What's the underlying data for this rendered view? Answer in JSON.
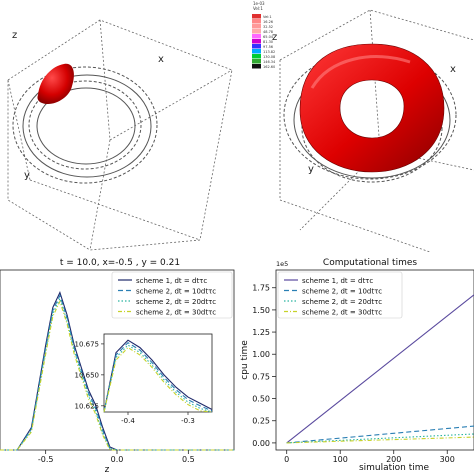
{
  "top_left": {
    "axis_labels": [
      "z",
      "y",
      "x"
    ]
  },
  "top_right": {
    "axis_labels": [
      "z",
      "y",
      "x"
    ],
    "colorbar_swatches": [
      "#e03030",
      "#ff8888",
      "#ff9999",
      "#ffaaaa",
      "#ff66ff",
      "#cc00cc",
      "#3333ff",
      "#00aaff",
      "#00cc33",
      "#33aa33",
      "#111111"
    ],
    "colorbar_text": [
      "1e-03",
      "Vel:1",
      "16.26",
      "32.52",
      "48.78",
      "65.04",
      "81.30",
      "97.56",
      "113.82",
      "130.08",
      "146.34",
      "162.60"
    ]
  },
  "chart_data": [
    {
      "type": "line",
      "title": "t = 10.0, x=-0.5 , y = 0.21",
      "xlabel": "z",
      "ylabel": "",
      "xticks": [
        "-0.5",
        "0.0",
        "0.5"
      ],
      "xlim": [
        -0.82,
        0.82
      ],
      "ylim": [
        10.6,
        10.72
      ],
      "legend_placement": "top-right",
      "series": [
        {
          "name": "scheme 1, dt = dtτc",
          "color": "#1f2a6b",
          "dash": "none",
          "x": [
            -0.82,
            -0.7,
            -0.6,
            -0.5,
            -0.45,
            -0.4,
            -0.35,
            -0.3,
            -0.25,
            -0.2,
            -0.15,
            -0.1,
            -0.05,
            0.0,
            0.2,
            0.5,
            0.82
          ],
          "y": [
            10.6,
            10.6,
            10.615,
            10.67,
            10.695,
            10.705,
            10.69,
            10.67,
            10.655,
            10.64,
            10.63,
            10.615,
            10.602,
            10.6,
            10.6,
            10.6,
            10.6
          ]
        },
        {
          "name": "scheme 2, dt = 10dtτc",
          "color": "#2a7fb4",
          "dash": "5,3",
          "x": [
            -0.82,
            -0.7,
            -0.6,
            -0.5,
            -0.45,
            -0.4,
            -0.35,
            -0.3,
            -0.25,
            -0.2,
            -0.15,
            -0.1,
            -0.05,
            0.0,
            0.2,
            0.5,
            0.82
          ],
          "y": [
            10.6,
            10.6,
            10.614,
            10.668,
            10.693,
            10.703,
            10.688,
            10.668,
            10.653,
            10.638,
            10.628,
            10.613,
            10.601,
            10.6,
            10.6,
            10.6,
            10.6
          ]
        },
        {
          "name": "scheme 2, dt = 20dtτc",
          "color": "#2bb5a0",
          "dash": "1.5,2",
          "x": [
            -0.82,
            -0.7,
            -0.6,
            -0.5,
            -0.45,
            -0.4,
            -0.35,
            -0.3,
            -0.25,
            -0.2,
            -0.15,
            -0.1,
            -0.05,
            0.0,
            0.2,
            0.5,
            0.82
          ],
          "y": [
            10.6,
            10.6,
            10.613,
            10.666,
            10.691,
            10.701,
            10.686,
            10.666,
            10.651,
            10.636,
            10.626,
            10.611,
            10.601,
            10.6,
            10.6,
            10.6,
            10.6
          ]
        },
        {
          "name": "scheme 2, dt = 30dtτc",
          "color": "#c7d22a",
          "dash": "4,2,1,2",
          "x": [
            -0.82,
            -0.7,
            -0.6,
            -0.5,
            -0.45,
            -0.4,
            -0.35,
            -0.3,
            -0.25,
            -0.2,
            -0.15,
            -0.1,
            -0.05,
            0.0,
            0.2,
            0.5,
            0.82
          ],
          "y": [
            10.6,
            10.6,
            10.612,
            10.664,
            10.689,
            10.699,
            10.684,
            10.664,
            10.649,
            10.634,
            10.624,
            10.61,
            10.6,
            10.6,
            10.6,
            10.6,
            10.6
          ]
        }
      ],
      "inset": {
        "xlim": [
          -0.44,
          -0.26
        ],
        "ylim": [
          10.62,
          10.683
        ],
        "xticks": [
          "-0.4",
          "-0.3"
        ],
        "xtick_values": [
          -0.4,
          -0.3
        ],
        "yticks": [
          "10.675",
          "10.650",
          "10.625"
        ],
        "ytick_values": [
          10.675,
          10.65,
          10.625
        ],
        "series": [
          {
            "x": [
              -0.44,
              -0.42,
              -0.4,
              -0.38,
              -0.36,
              -0.34,
              -0.32,
              -0.3,
              -0.28,
              -0.26
            ],
            "y": [
              10.62,
              10.668,
              10.678,
              10.672,
              10.662,
              10.65,
              10.64,
              10.632,
              10.627,
              10.622
            ]
          },
          {
            "x": [
              -0.44,
              -0.42,
              -0.4,
              -0.38,
              -0.36,
              -0.34,
              -0.32,
              -0.3,
              -0.28,
              -0.26
            ],
            "y": [
              10.62,
              10.666,
              10.676,
              10.67,
              10.66,
              10.648,
              10.638,
              10.63,
              10.625,
              10.621
            ]
          },
          {
            "x": [
              -0.44,
              -0.42,
              -0.4,
              -0.38,
              -0.36,
              -0.34,
              -0.32,
              -0.3,
              -0.28,
              -0.26
            ],
            "y": [
              10.62,
              10.664,
              10.674,
              10.668,
              10.658,
              10.646,
              10.636,
              10.628,
              10.623,
              10.62
            ]
          },
          {
            "x": [
              -0.44,
              -0.42,
              -0.4,
              -0.38,
              -0.36,
              -0.34,
              -0.32,
              -0.3,
              -0.28,
              -0.26
            ],
            "y": [
              10.62,
              10.662,
              10.672,
              10.666,
              10.656,
              10.644,
              10.634,
              10.626,
              10.621,
              10.62
            ]
          }
        ]
      }
    },
    {
      "type": "line",
      "title": "Computational times",
      "xlabel": "simulation time",
      "ylabel": "cpu time",
      "offset_text": "1e5",
      "xticks": [
        "0",
        "100",
        "200",
        "300"
      ],
      "xtick_values": [
        0,
        100,
        200,
        300
      ],
      "yticks": [
        "0.00",
        "0.25",
        "0.50",
        "0.75",
        "1.00",
        "1.25",
        "1.50",
        "1.75"
      ],
      "ytick_values": [
        0,
        0.25,
        0.5,
        0.75,
        1.0,
        1.25,
        1.5,
        1.75
      ],
      "xlim": [
        -20,
        350
      ],
      "ylim": [
        -0.08,
        1.95
      ],
      "legend_placement": "top-left",
      "series": [
        {
          "name": "scheme 1, dt = dtτc",
          "color": "#5a4a9e",
          "dash": "none",
          "x": [
            0,
            350
          ],
          "y": [
            0,
            1.67
          ]
        },
        {
          "name": "scheme 2, dt = 10dtτc",
          "color": "#2a7fb4",
          "dash": "5,3",
          "x": [
            0,
            350
          ],
          "y": [
            0,
            0.19
          ]
        },
        {
          "name": "scheme 2, dt = 20dtτc",
          "color": "#2bb5a0",
          "dash": "1.5,2",
          "x": [
            0,
            350
          ],
          "y": [
            0,
            0.1
          ]
        },
        {
          "name": "scheme 2, dt = 30dtτc",
          "color": "#c7d22a",
          "dash": "4,2,1,2",
          "x": [
            0,
            350
          ],
          "y": [
            0,
            0.065
          ]
        }
      ]
    }
  ]
}
